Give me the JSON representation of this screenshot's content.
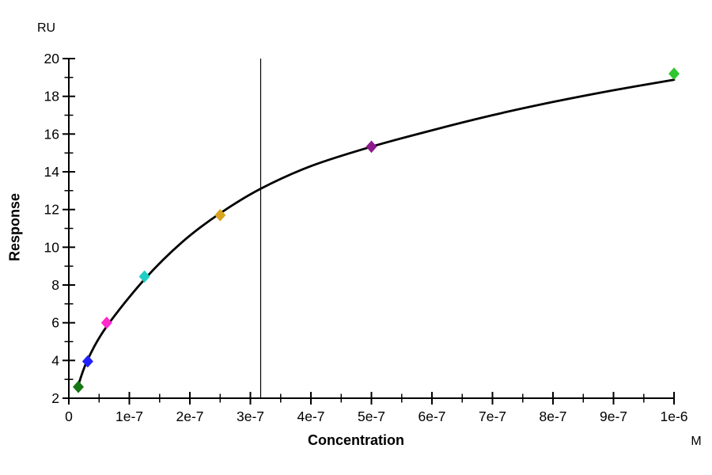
{
  "chart_data": {
    "type": "scatter",
    "title": "",
    "y_unit_label": "RU",
    "x_unit_label": "M",
    "ylabel": "Response",
    "xlabel": "Concentration",
    "xlim": [
      0,
      1e-06
    ],
    "ylim": [
      2,
      20
    ],
    "grid": false,
    "legend": "none",
    "axis_color": "#000000",
    "curve_color": "#000000",
    "kd_line_x": 3.17e-07,
    "x_tick_values": [
      0,
      1e-07,
      2e-07,
      3e-07,
      4e-07,
      5e-07,
      6e-07,
      7e-07,
      8e-07,
      9e-07,
      1e-06
    ],
    "x_tick_labels": [
      "0",
      "1e-7",
      "2e-7",
      "3e-7",
      "4e-7",
      "5e-7",
      "6e-7",
      "7e-7",
      "8e-7",
      "9e-7",
      "1e-6"
    ],
    "x_minor_tick_values": [
      5e-08,
      1.5e-07,
      2.5e-07,
      3.5e-07,
      4.5e-07,
      5.5e-07,
      6.5e-07,
      7.5e-07,
      8.5e-07,
      9.5e-07
    ],
    "y_tick_values": [
      2,
      4,
      6,
      8,
      10,
      12,
      14,
      16,
      18,
      20
    ],
    "y_tick_labels": [
      "2",
      "4",
      "6",
      "8",
      "10",
      "12",
      "14",
      "16",
      "18",
      "20"
    ],
    "y_minor_tick_values": [
      3,
      5,
      7,
      9,
      11,
      13,
      15,
      17,
      19
    ],
    "points": [
      {
        "x": 1.5625e-08,
        "y": 2.6,
        "color": "#157815",
        "name": "dark-green"
      },
      {
        "x": 3.125e-08,
        "y": 3.95,
        "color": "#2121ff",
        "name": "blue"
      },
      {
        "x": 6.25e-08,
        "y": 6.0,
        "color": "#ff29cc",
        "name": "magenta"
      },
      {
        "x": 1.25e-07,
        "y": 8.45,
        "color": "#1fcec4",
        "name": "turquoise"
      },
      {
        "x": 2.5e-07,
        "y": 11.7,
        "color": "#d8a41e",
        "name": "gold"
      },
      {
        "x": 5e-07,
        "y": 15.33,
        "color": "#8d1a8d",
        "name": "purple"
      },
      {
        "x": 1e-06,
        "y": 19.2,
        "color": "#2fc72f",
        "name": "light-green"
      }
    ],
    "fit_curve": [
      [
        1.5625e-08,
        2.7
      ],
      [
        3.125e-08,
        4.05
      ],
      [
        6.25e-08,
        5.8
      ],
      [
        1.25e-07,
        8.3
      ],
      [
        1.875e-07,
        10.28
      ],
      [
        2.5e-07,
        11.8
      ],
      [
        3.17e-07,
        13.1
      ],
      [
        4e-07,
        14.3
      ],
      [
        5e-07,
        15.33
      ],
      [
        6e-07,
        16.2
      ],
      [
        7e-07,
        17.0
      ],
      [
        8e-07,
        17.7
      ],
      [
        9e-07,
        18.32
      ],
      [
        1e-06,
        18.88
      ]
    ]
  }
}
